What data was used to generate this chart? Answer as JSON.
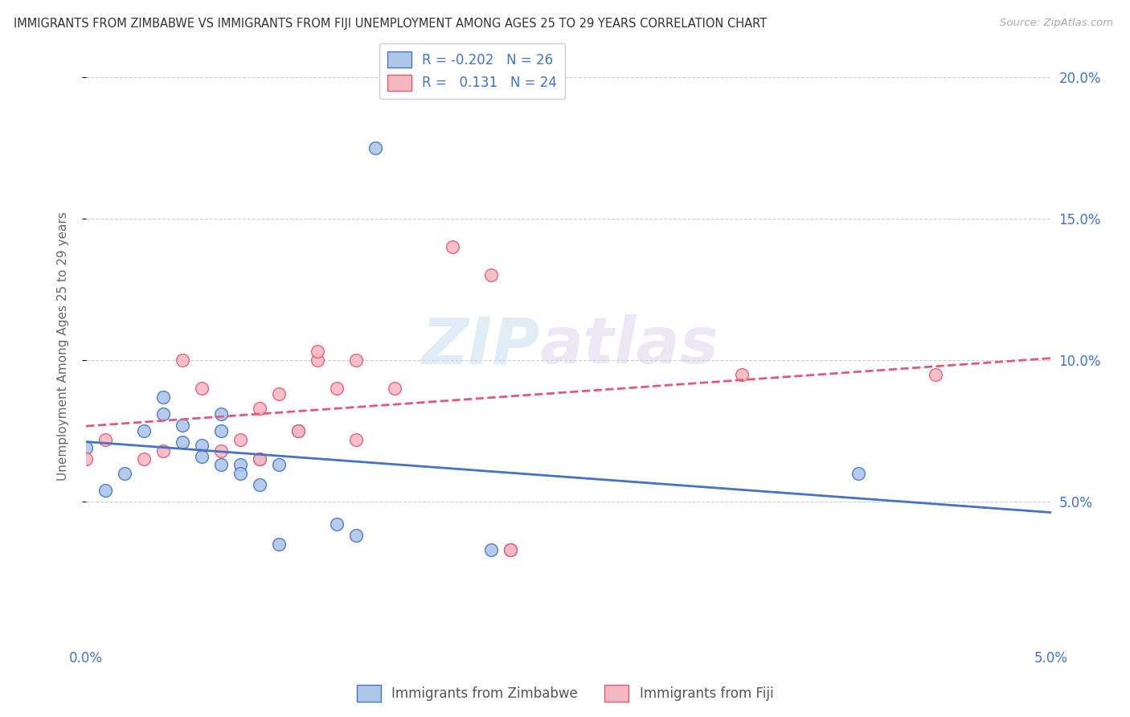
{
  "title": "IMMIGRANTS FROM ZIMBABWE VS IMMIGRANTS FROM FIJI UNEMPLOYMENT AMONG AGES 25 TO 29 YEARS CORRELATION CHART",
  "source": "Source: ZipAtlas.com",
  "ylabel": "Unemployment Among Ages 25 to 29 years",
  "xlim": [
    0.0,
    0.05
  ],
  "ylim": [
    0.0,
    0.21
  ],
  "yticks": [
    0.05,
    0.1,
    0.15,
    0.2
  ],
  "ytick_labels": [
    "5.0%",
    "10.0%",
    "15.0%",
    "20.0%"
  ],
  "legend_r_zimbabwe": "-0.202",
  "legend_n_zimbabwe": "26",
  "legend_r_fiji": "0.131",
  "legend_n_fiji": "24",
  "watermark_zip": "ZIP",
  "watermark_atlas": "atlas",
  "color_zimbabwe": "#aec6e8",
  "color_fiji": "#f4b8c1",
  "line_color_zimbabwe": "#4472c4",
  "line_color_fiji": "#e05a78",
  "grid_color": "#cccccc",
  "background_color": "#ffffff",
  "scatter_zimbabwe_x": [
    0.0,
    0.001,
    0.002,
    0.003,
    0.004,
    0.004,
    0.005,
    0.005,
    0.006,
    0.006,
    0.007,
    0.007,
    0.007,
    0.008,
    0.008,
    0.009,
    0.009,
    0.01,
    0.01,
    0.011,
    0.013,
    0.014,
    0.015,
    0.021,
    0.022,
    0.04
  ],
  "scatter_zimbabwe_y": [
    0.069,
    0.054,
    0.06,
    0.075,
    0.081,
    0.087,
    0.071,
    0.077,
    0.07,
    0.066,
    0.081,
    0.075,
    0.063,
    0.063,
    0.06,
    0.065,
    0.056,
    0.063,
    0.035,
    0.075,
    0.042,
    0.038,
    0.175,
    0.033,
    0.033,
    0.06
  ],
  "scatter_fiji_x": [
    0.0,
    0.001,
    0.003,
    0.004,
    0.005,
    0.006,
    0.007,
    0.008,
    0.009,
    0.009,
    0.01,
    0.011,
    0.012,
    0.012,
    0.013,
    0.014,
    0.014,
    0.016,
    0.019,
    0.021,
    0.022,
    0.022,
    0.034,
    0.044
  ],
  "scatter_fiji_y": [
    0.065,
    0.072,
    0.065,
    0.068,
    0.1,
    0.09,
    0.068,
    0.072,
    0.083,
    0.065,
    0.088,
    0.075,
    0.1,
    0.103,
    0.09,
    0.072,
    0.1,
    0.09,
    0.14,
    0.13,
    0.033,
    0.033,
    0.095,
    0.095
  ]
}
